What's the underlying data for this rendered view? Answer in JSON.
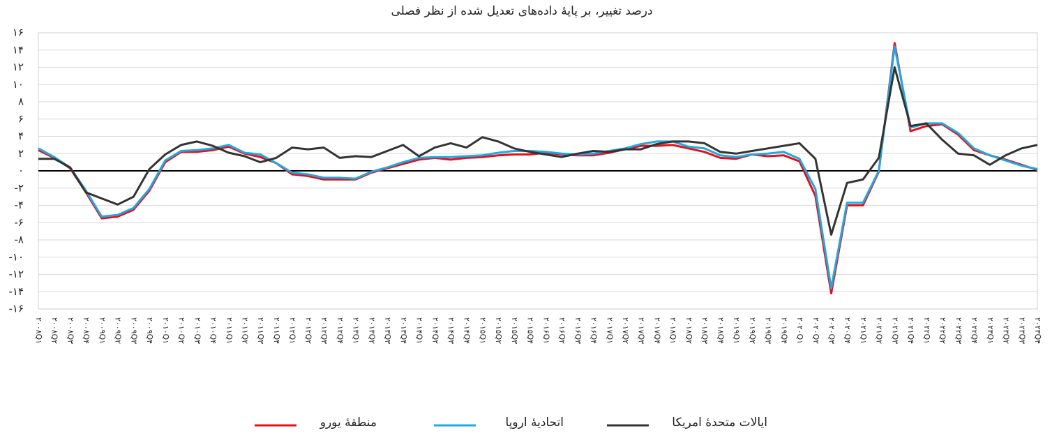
{
  "chart_data": {
    "type": "line",
    "title": "درصد تغییر، بر پایهٔ داده‌های تعدیل شده از نظر فصلی",
    "categories": [
      "۲۰۰۸Q۱",
      "۲۰۰۸Q۲",
      "۲۰۰۸Q۳",
      "۲۰۰۸Q۴",
      "۲۰۰۹Q۱",
      "۲۰۰۹Q۲",
      "۲۰۰۹Q۳",
      "۲۰۰۹Q۴",
      "۲۰۱۰Q۱",
      "۲۰۱۰Q۲",
      "۲۰۱۰Q۳",
      "۲۰۱۰Q۴",
      "۲۰۱۱Q۱",
      "۲۰۱۱Q۲",
      "۲۰۱۱Q۳",
      "۲۰۱۱Q۴",
      "۲۰۱۲Q۱",
      "۲۰۱۲Q۲",
      "۲۰۱۲Q۳",
      "۲۰۱۲Q۴",
      "۲۰۱۳Q۱",
      "۲۰۱۳Q۲",
      "۲۰۱۳Q۳",
      "۲۰۱۳Q۴",
      "۲۰۱۴Q۱",
      "۲۰۱۴Q۲",
      "۲۰۱۴Q۳",
      "۲۰۱۴Q۴",
      "۲۰۱۵Q۱",
      "۲۰۱۵Q۲",
      "۲۰۱۵Q۳",
      "۲۰۱۵Q۴",
      "۲۰۱۶Q۱",
      "۲۰۱۶Q۲",
      "۲۰۱۶Q۳",
      "۲۰۱۶Q۴",
      "۲۰۱۷Q۱",
      "۲۰۱۷Q۲",
      "۲۰۱۷Q۳",
      "۲۰۱۷Q۴",
      "۲۰۱۸Q۱",
      "۲۰۱۸Q۲",
      "۲۰۱۸Q۳",
      "۲۰۱۸Q۴",
      "۲۰۱۹Q۱",
      "۲۰۱۹Q۲",
      "۲۰۱۹Q۳",
      "۲۰۱۹Q۴",
      "۲۰۲۰Q۱",
      "۲۰۲۰Q۲",
      "۲۰۲۰Q۳",
      "۲۰۲۰Q۴",
      "۲۰۲۱Q۱",
      "۲۰۲۱Q۲",
      "۲۰۲۱Q۳",
      "۲۰۲۱Q۴",
      "۲۰۲۲Q۱",
      "۲۰۲۲Q۲",
      "۲۰۲۲Q۳",
      "۲۰۲۲Q۴",
      "۲۰۲۳Q۱",
      "۲۰۲۳Q۲",
      "۲۰۲۳Q۳",
      "۲۰۲۳Q۴"
    ],
    "series": [
      {
        "name": "ایالات متحدهٔ امریکا",
        "color": "#333333",
        "values": [
          1.4,
          1.4,
          0.4,
          -2.5,
          -3.2,
          -3.9,
          -3.0,
          0.2,
          1.9,
          3.0,
          3.4,
          2.9,
          2.1,
          1.7,
          1.0,
          1.5,
          2.7,
          2.5,
          2.7,
          1.5,
          1.7,
          1.6,
          2.3,
          3.0,
          1.7,
          2.7,
          3.2,
          2.7,
          3.9,
          3.4,
          2.6,
          2.2,
          1.9,
          1.6,
          2.0,
          2.3,
          2.2,
          2.5,
          2.5,
          3.1,
          3.4,
          3.4,
          3.2,
          2.2,
          2.0,
          2.3,
          2.6,
          2.9,
          3.2,
          1.4,
          -7.4,
          -1.4,
          -1.0,
          1.5,
          12.0,
          5.2,
          5.5,
          3.6,
          2.0,
          1.8,
          0.7,
          1.8,
          2.6,
          3.0
        ]
      },
      {
        "name": "اتحادیهٔ اروپا",
        "color": "#21a8e0",
        "values": [
          2.6,
          1.6,
          0.4,
          -2.3,
          -5.3,
          -5.1,
          -4.3,
          -2.1,
          1.2,
          2.3,
          2.4,
          2.6,
          3.0,
          2.1,
          1.9,
          0.9,
          -0.2,
          -0.4,
          -0.8,
          -0.8,
          -0.9,
          -0.1,
          0.4,
          1.0,
          1.5,
          1.6,
          1.6,
          1.7,
          1.8,
          2.1,
          2.3,
          2.3,
          2.2,
          2.0,
          1.9,
          2.0,
          2.3,
          2.6,
          3.1,
          3.4,
          3.4,
          2.8,
          2.6,
          1.8,
          1.6,
          1.9,
          2.0,
          2.2,
          1.4,
          -2.1,
          -13.6,
          -3.7,
          -3.7,
          0.0,
          14.4,
          5.0,
          5.5,
          5.5,
          4.4,
          2.6,
          1.8,
          1.2,
          0.6,
          0.2
        ]
      },
      {
        "name": "منطقهٔ یورو",
        "color": "#e3101a",
        "values": [
          2.4,
          1.5,
          0.3,
          -2.5,
          -5.5,
          -5.3,
          -4.5,
          -2.3,
          1.0,
          2.2,
          2.2,
          2.4,
          2.8,
          2.0,
          1.6,
          0.9,
          -0.4,
          -0.6,
          -1.0,
          -1.0,
          -1.0,
          -0.2,
          0.3,
          0.8,
          1.3,
          1.5,
          1.3,
          1.5,
          1.6,
          1.8,
          1.9,
          1.9,
          2.1,
          1.9,
          1.8,
          1.8,
          2.1,
          2.5,
          2.9,
          2.9,
          3.0,
          2.6,
          2.2,
          1.5,
          1.4,
          1.9,
          1.7,
          1.8,
          1.1,
          -2.9,
          -14.2,
          -4.0,
          -4.0,
          -0.1,
          14.8,
          4.6,
          5.2,
          5.4,
          4.2,
          2.4,
          1.8,
          1.3,
          0.7,
          0.1
        ]
      }
    ],
    "ylim": [
      -16,
      16
    ],
    "yticks": [
      {
        "value": -16,
        "label": "-۱۶"
      },
      {
        "value": -14,
        "label": "-۱۴"
      },
      {
        "value": -12,
        "label": "-۱۲"
      },
      {
        "value": -10,
        "label": "-۱۰"
      },
      {
        "value": -8,
        "label": "-۸"
      },
      {
        "value": -6,
        "label": "-۶"
      },
      {
        "value": -4,
        "label": "-۴"
      },
      {
        "value": -2,
        "label": "-۲"
      },
      {
        "value": 0,
        "label": "۰"
      },
      {
        "value": 2,
        "label": "۲"
      },
      {
        "value": 4,
        "label": "۴"
      },
      {
        "value": 6,
        "label": "۶"
      },
      {
        "value": 8,
        "label": "۸"
      },
      {
        "value": 10,
        "label": "۱۰"
      },
      {
        "value": 12,
        "label": "۱۲"
      },
      {
        "value": 14,
        "label": "۱۴"
      },
      {
        "value": 16,
        "label": "۱۶"
      }
    ],
    "grid": true,
    "legend": "bottom"
  }
}
